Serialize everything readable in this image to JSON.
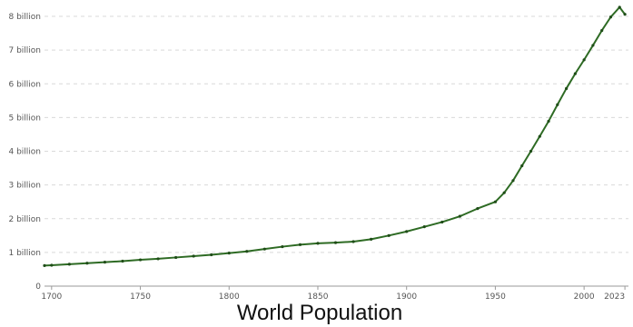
{
  "chart_data": {
    "type": "line",
    "title": "World Population",
    "xlabel": "",
    "ylabel": "",
    "xlim": [
      1696,
      2025
    ],
    "ylim": [
      0,
      8000000000
    ],
    "grid": true,
    "y_ticks": [
      {
        "value": 0,
        "label": "0"
      },
      {
        "value": 1000000000,
        "label": "1 billion"
      },
      {
        "value": 2000000000,
        "label": "2 billion"
      },
      {
        "value": 3000000000,
        "label": "3 billion"
      },
      {
        "value": 4000000000,
        "label": "4 billion"
      },
      {
        "value": 5000000000,
        "label": "5 billion"
      },
      {
        "value": 6000000000,
        "label": "6 billion"
      },
      {
        "value": 7000000000,
        "label": "7 billion"
      },
      {
        "value": 8000000000,
        "label": "8 billion"
      }
    ],
    "x_ticks": [
      {
        "value": 1700,
        "label": "1700"
      },
      {
        "value": 1750,
        "label": "1750"
      },
      {
        "value": 1800,
        "label": "1800"
      },
      {
        "value": 1850,
        "label": "1850"
      },
      {
        "value": 1900,
        "label": "1900"
      },
      {
        "value": 1950,
        "label": "1950"
      },
      {
        "value": 2000,
        "label": "2000"
      },
      {
        "value": 2023,
        "label": "2023"
      }
    ],
    "series": [
      {
        "color": "#2e6b24",
        "x": [
          1696,
          1700,
          1710,
          1720,
          1730,
          1740,
          1750,
          1760,
          1770,
          1780,
          1790,
          1800,
          1810,
          1820,
          1830,
          1840,
          1850,
          1860,
          1870,
          1880,
          1890,
          1900,
          1910,
          1920,
          1930,
          1940,
          1950,
          1955,
          1960,
          1965,
          1970,
          1975,
          1980,
          1985,
          1990,
          1995,
          2000,
          2005,
          2010,
          2015,
          2020,
          2023
        ],
        "values": [
          610000000,
          620000000,
          650000000,
          680000000,
          710000000,
          740000000,
          780000000,
          810000000,
          850000000,
          890000000,
          930000000,
          980000000,
          1030000000,
          1100000000,
          1170000000,
          1230000000,
          1270000000,
          1290000000,
          1320000000,
          1390000000,
          1500000000,
          1620000000,
          1760000000,
          1900000000,
          2070000000,
          2300000000,
          2500000000,
          2770000000,
          3130000000,
          3570000000,
          4000000000,
          4440000000,
          4890000000,
          5380000000,
          5860000000,
          6300000000,
          6710000000,
          7140000000,
          7580000000,
          7980000000,
          8270000000,
          8060000000
        ]
      }
    ]
  }
}
